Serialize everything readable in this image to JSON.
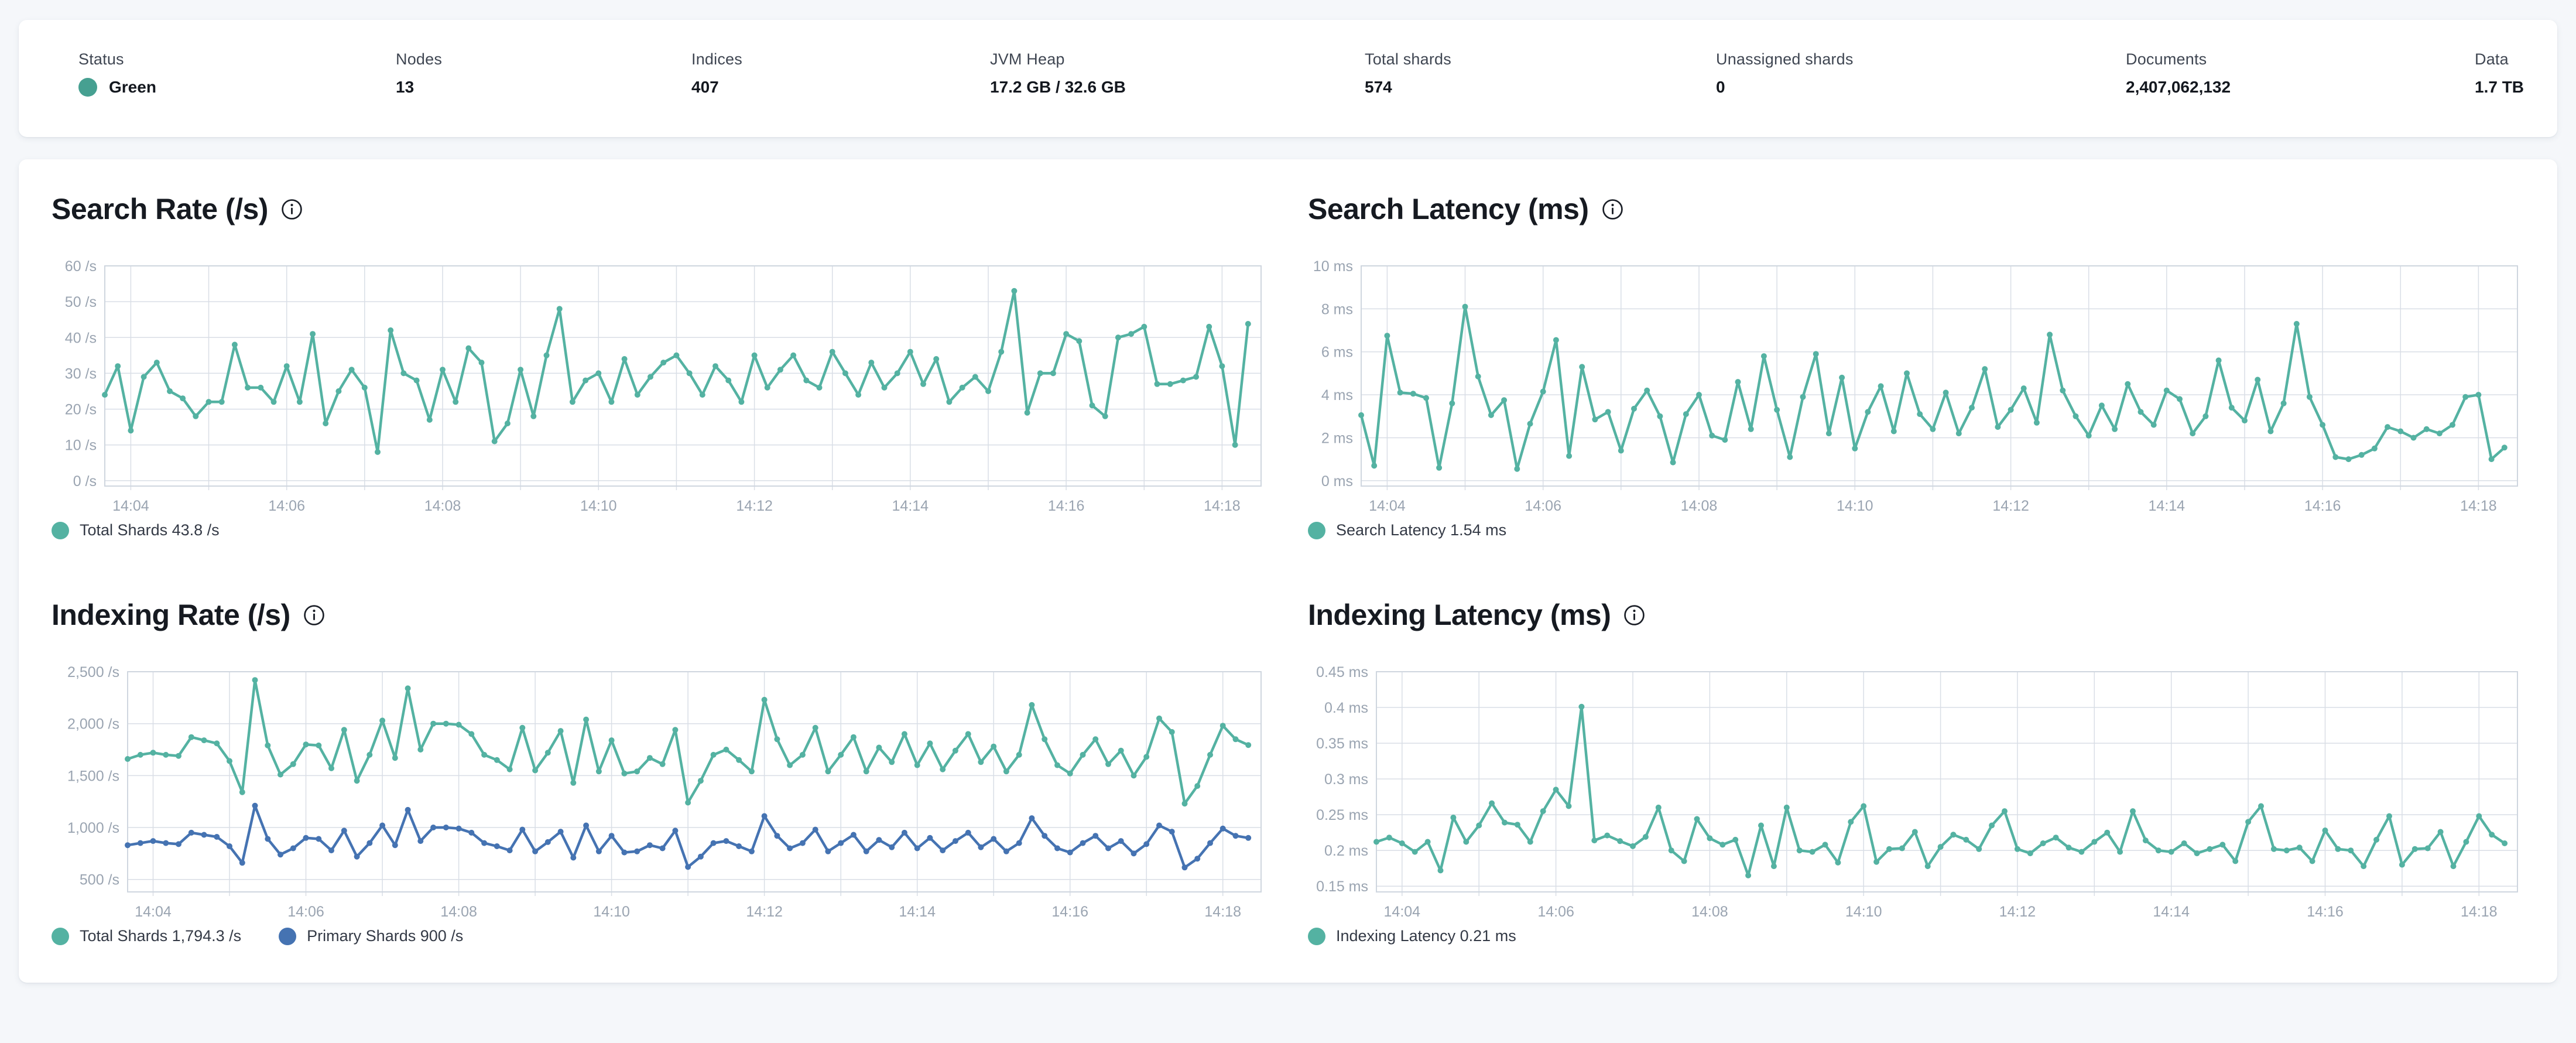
{
  "status_bar": {
    "items": [
      {
        "label": "Status",
        "value": "Green",
        "dot_color": "#46a091"
      },
      {
        "label": "Nodes",
        "value": "13"
      },
      {
        "label": "Indices",
        "value": "407"
      },
      {
        "label": "JVM Heap",
        "value": "17.2 GB / 32.6 GB"
      },
      {
        "label": "Total shards",
        "value": "574"
      },
      {
        "label": "Unassigned shards",
        "value": "0"
      },
      {
        "label": "Documents",
        "value": "2,407,062,132"
      },
      {
        "label": "Data",
        "value": "1.7 TB"
      }
    ]
  },
  "colors": {
    "teal": "#54b2a2",
    "blue": "#4573b2",
    "status_green": "#46a091",
    "grid": "#d9dee6",
    "axis_text": "#9aa4b1"
  },
  "chart_data": [
    {
      "id": "search-rate",
      "type": "line",
      "title": "Search Rate (/s)",
      "y_ticks": [
        {
          "v": 0,
          "label": "0 /s"
        },
        {
          "v": 10,
          "label": "10 /s"
        },
        {
          "v": 20,
          "label": "20 /s"
        },
        {
          "v": 30,
          "label": "30 /s"
        },
        {
          "v": 40,
          "label": "40 /s"
        },
        {
          "v": 50,
          "label": "50 /s"
        },
        {
          "v": 60,
          "label": "60 /s"
        }
      ],
      "y_domain": [
        -1.5,
        60
      ],
      "x_tick_labels": [
        "14:04",
        "14:06",
        "14:08",
        "14:10",
        "14:12",
        "14:14",
        "14:16",
        "14:18"
      ],
      "x_first_tick_s": 20,
      "x_span_s": 890,
      "point_interval_s": 10,
      "legend": [
        {
          "label": "Total Shards 43.8 /s",
          "color": "#54b2a2"
        }
      ],
      "series": [
        {
          "name": "Total Shards",
          "color": "#54b2a2",
          "values": [
            24,
            32,
            14,
            29,
            33,
            25,
            23,
            18,
            22,
            22,
            38,
            26,
            26,
            22,
            32,
            22,
            41,
            16,
            25,
            31,
            26,
            8,
            42,
            30,
            28,
            17,
            31,
            22,
            37,
            33,
            11,
            16,
            31,
            18,
            35,
            48,
            22,
            28,
            30,
            22,
            34,
            24,
            29,
            33,
            35,
            30,
            24,
            32,
            28,
            22,
            35,
            26,
            31,
            35,
            28,
            26,
            36,
            30,
            24,
            33,
            26,
            30,
            36,
            27,
            34,
            22,
            26,
            29,
            25,
            36,
            53,
            19,
            30,
            30,
            41,
            39,
            21,
            18,
            40,
            41,
            43,
            27,
            27,
            28,
            29,
            43,
            32,
            10,
            43.8
          ]
        }
      ]
    },
    {
      "id": "search-latency",
      "type": "line",
      "title": "Search Latency (ms)",
      "y_ticks": [
        {
          "v": 0,
          "label": "0 ms"
        },
        {
          "v": 2,
          "label": "2 ms"
        },
        {
          "v": 4,
          "label": "4 ms"
        },
        {
          "v": 6,
          "label": "6 ms"
        },
        {
          "v": 8,
          "label": "8 ms"
        },
        {
          "v": 10,
          "label": "10 ms"
        }
      ],
      "y_domain": [
        -0.25,
        10
      ],
      "x_tick_labels": [
        "14:04",
        "14:06",
        "14:08",
        "14:10",
        "14:12",
        "14:14",
        "14:16",
        "14:18"
      ],
      "x_first_tick_s": 20,
      "x_span_s": 890,
      "point_interval_s": 10,
      "legend": [
        {
          "label": "Search Latency 1.54 ms",
          "color": "#54b2a2"
        }
      ],
      "series": [
        {
          "name": "Search Latency",
          "color": "#54b2a2",
          "values": [
            3.05,
            0.7,
            6.75,
            4.1,
            4.05,
            3.85,
            0.6,
            3.6,
            8.1,
            4.85,
            3.05,
            3.75,
            0.55,
            2.65,
            4.15,
            6.55,
            1.15,
            5.3,
            2.85,
            3.2,
            1.4,
            3.35,
            4.2,
            3.0,
            0.85,
            3.1,
            4.0,
            2.1,
            1.9,
            4.6,
            2.4,
            5.8,
            3.3,
            1.1,
            3.9,
            5.9,
            2.2,
            4.8,
            1.5,
            3.2,
            4.4,
            2.3,
            5.0,
            3.1,
            2.4,
            4.1,
            2.2,
            3.4,
            5.2,
            2.5,
            3.3,
            4.3,
            2.7,
            6.8,
            4.2,
            3.0,
            2.1,
            3.5,
            2.4,
            4.5,
            3.2,
            2.6,
            4.2,
            3.8,
            2.2,
            3.0,
            5.6,
            3.4,
            2.8,
            4.7,
            2.3,
            3.6,
            7.3,
            3.9,
            2.6,
            1.1,
            1.0,
            1.2,
            1.5,
            2.5,
            2.3,
            2.0,
            2.4,
            2.2,
            2.6,
            3.9,
            4.0,
            1.0,
            1.54
          ]
        }
      ]
    },
    {
      "id": "indexing-rate",
      "type": "line",
      "title": "Indexing Rate (/s)",
      "y_ticks": [
        {
          "v": 500,
          "label": "500 /s"
        },
        {
          "v": 1000,
          "label": "1,000 /s"
        },
        {
          "v": 1500,
          "label": "1,500 /s"
        },
        {
          "v": 2000,
          "label": "2,000 /s"
        },
        {
          "v": 2500,
          "label": "2,500 /s"
        }
      ],
      "y_domain": [
        380,
        2500
      ],
      "x_tick_labels": [
        "14:04",
        "14:06",
        "14:08",
        "14:10",
        "14:12",
        "14:14",
        "14:16",
        "14:18"
      ],
      "x_first_tick_s": 20,
      "x_span_s": 890,
      "point_interval_s": 10,
      "legend": [
        {
          "label": "Total Shards 1,794.3 /s",
          "color": "#54b2a2"
        },
        {
          "label": "Primary Shards 900 /s",
          "color": "#4573b2"
        }
      ],
      "series": [
        {
          "name": "Total Shards",
          "color": "#54b2a2",
          "values": [
            1660,
            1700,
            1720,
            1700,
            1690,
            1870,
            1840,
            1810,
            1640,
            1340,
            2420,
            1790,
            1510,
            1610,
            1800,
            1790,
            1570,
            1940,
            1450,
            1700,
            2030,
            1670,
            2340,
            1750,
            2000,
            2000,
            1990,
            1900,
            1700,
            1650,
            1560,
            1960,
            1550,
            1720,
            1930,
            1430,
            2040,
            1540,
            1840,
            1520,
            1540,
            1670,
            1610,
            1940,
            1240,
            1450,
            1700,
            1750,
            1650,
            1540,
            2230,
            1850,
            1600,
            1700,
            1960,
            1540,
            1700,
            1870,
            1540,
            1770,
            1630,
            1900,
            1600,
            1810,
            1560,
            1740,
            1900,
            1630,
            1780,
            1540,
            1700,
            2180,
            1850,
            1600,
            1520,
            1700,
            1850,
            1610,
            1740,
            1500,
            1680,
            2050,
            1920,
            1230,
            1400,
            1700,
            1980,
            1850,
            1794.3
          ]
        },
        {
          "name": "Primary Shards",
          "color": "#4573b2",
          "values": [
            830,
            850,
            870,
            850,
            840,
            950,
            930,
            910,
            820,
            660,
            1210,
            890,
            740,
            800,
            900,
            890,
            780,
            970,
            720,
            850,
            1020,
            830,
            1170,
            870,
            1000,
            1000,
            990,
            950,
            850,
            820,
            780,
            980,
            770,
            860,
            960,
            710,
            1020,
            770,
            920,
            760,
            770,
            830,
            800,
            970,
            620,
            720,
            850,
            870,
            820,
            770,
            1110,
            920,
            800,
            850,
            980,
            770,
            850,
            930,
            770,
            880,
            810,
            950,
            800,
            900,
            780,
            870,
            950,
            810,
            890,
            770,
            850,
            1090,
            920,
            800,
            760,
            850,
            920,
            800,
            870,
            750,
            840,
            1020,
            960,
            615,
            700,
            850,
            990,
            920,
            900
          ]
        }
      ]
    },
    {
      "id": "indexing-latency",
      "type": "line",
      "title": "Indexing Latency (ms)",
      "y_ticks": [
        {
          "v": 0.15,
          "label": "0.15 ms"
        },
        {
          "v": 0.2,
          "label": "0.2 ms"
        },
        {
          "v": 0.25,
          "label": "0.25 ms"
        },
        {
          "v": 0.3,
          "label": "0.3 ms"
        },
        {
          "v": 0.35,
          "label": "0.35 ms"
        },
        {
          "v": 0.4,
          "label": "0.4 ms"
        },
        {
          "v": 0.45,
          "label": "0.45 ms"
        }
      ],
      "y_domain": [
        0.142,
        0.45
      ],
      "x_tick_labels": [
        "14:04",
        "14:06",
        "14:08",
        "14:10",
        "14:12",
        "14:14",
        "14:16",
        "14:18"
      ],
      "x_first_tick_s": 20,
      "x_span_s": 890,
      "point_interval_s": 10,
      "legend": [
        {
          "label": "Indexing Latency 0.21 ms",
          "color": "#54b2a2"
        }
      ],
      "series": [
        {
          "name": "Indexing Latency",
          "color": "#54b2a2",
          "values": [
            0.212,
            0.218,
            0.21,
            0.198,
            0.212,
            0.172,
            0.246,
            0.212,
            0.235,
            0.266,
            0.239,
            0.236,
            0.212,
            0.255,
            0.285,
            0.262,
            0.401,
            0.214,
            0.221,
            0.213,
            0.206,
            0.219,
            0.26,
            0.2,
            0.185,
            0.244,
            0.217,
            0.208,
            0.215,
            0.165,
            0.235,
            0.178,
            0.26,
            0.2,
            0.198,
            0.208,
            0.183,
            0.24,
            0.262,
            0.184,
            0.202,
            0.203,
            0.226,
            0.178,
            0.205,
            0.222,
            0.215,
            0.202,
            0.235,
            0.255,
            0.202,
            0.196,
            0.21,
            0.218,
            0.204,
            0.198,
            0.212,
            0.225,
            0.198,
            0.255,
            0.214,
            0.2,
            0.198,
            0.21,
            0.196,
            0.202,
            0.208,
            0.185,
            0.24,
            0.262,
            0.202,
            0.2,
            0.204,
            0.185,
            0.228,
            0.202,
            0.2,
            0.178,
            0.215,
            0.248,
            0.18,
            0.202,
            0.203,
            0.226,
            0.178,
            0.212,
            0.248,
            0.222,
            0.21
          ]
        }
      ]
    }
  ]
}
